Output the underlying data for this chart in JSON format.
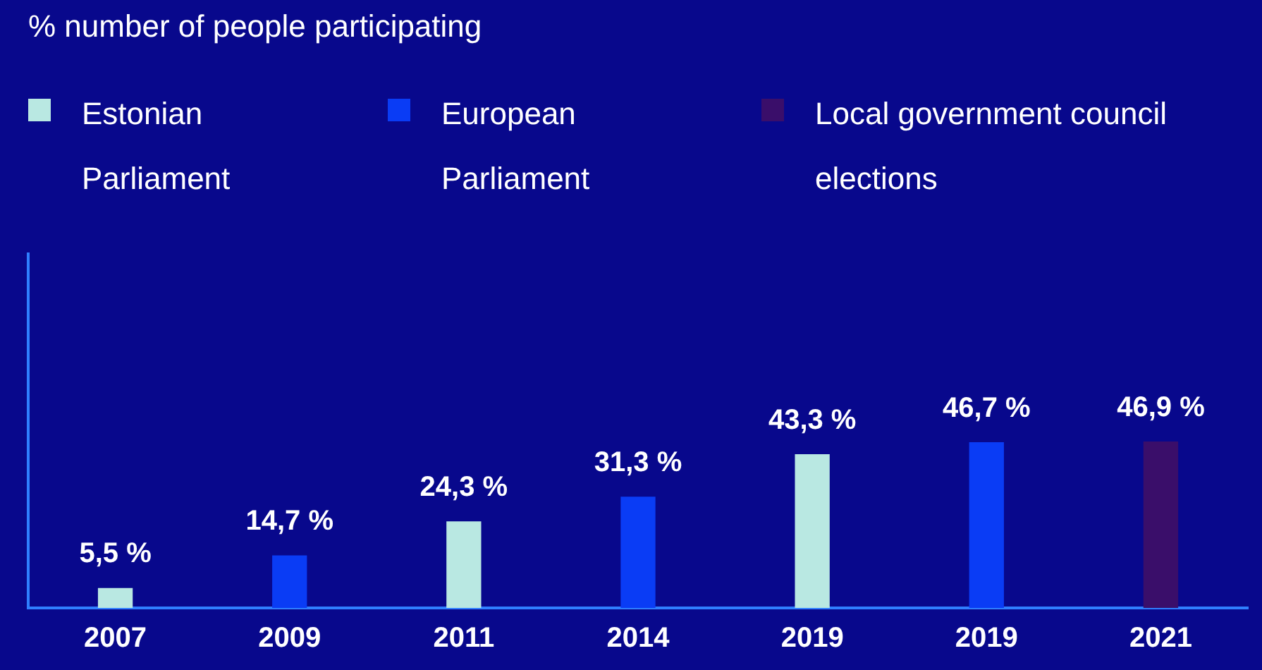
{
  "chart_data": {
    "type": "bar",
    "title": "% number of people participating",
    "categories": [
      "2007",
      "2009",
      "2011",
      "2014",
      "2019",
      "2019",
      "2021"
    ],
    "series": [
      {
        "name": "Estonian Parliament",
        "color": "#b9e8e2",
        "values": [
          5.5,
          null,
          24.3,
          null,
          43.3,
          null,
          null
        ],
        "value_labels": [
          "5,5 %",
          null,
          "24,3 %",
          null,
          "43,3 %",
          null,
          null
        ]
      },
      {
        "name": "European Parliament",
        "color": "#0a3cf5",
        "values": [
          null,
          14.7,
          null,
          31.3,
          null,
          46.7,
          null
        ],
        "value_labels": [
          null,
          "14,7 %",
          null,
          "31,3 %",
          null,
          "46,7 %",
          null
        ]
      },
      {
        "name": "Local government council elections",
        "color": "#3a0e6a",
        "values": [
          null,
          null,
          null,
          null,
          null,
          null,
          46.9
        ],
        "value_labels": [
          null,
          null,
          null,
          null,
          null,
          null,
          "46,9 %"
        ]
      }
    ],
    "ylim": [
      0,
      100
    ],
    "grid": false,
    "legend": "top left",
    "tick_labels": "x"
  }
}
